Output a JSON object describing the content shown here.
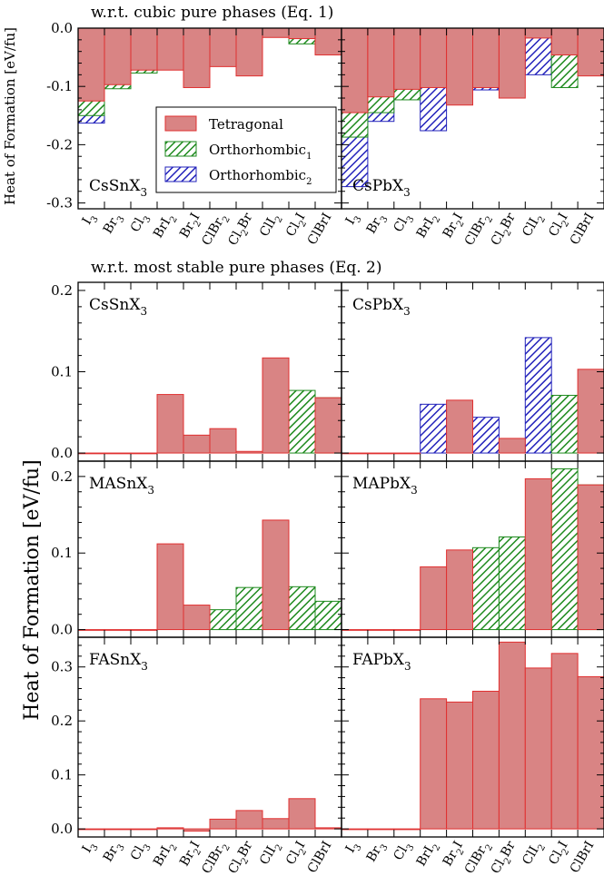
{
  "colors": {
    "tetragonal_fill": "#d98484",
    "tetragonal_stroke": "#e03030",
    "ortho1_stripe": "#1e8a1e",
    "ortho2_stripe": "#2222bb",
    "axis": "#000000"
  },
  "headings": {
    "top": "w.r.t. cubic pure phases (Eq. 1)",
    "bottom": "w.r.t. most stable pure phases (Eq. 2)"
  },
  "ylabels": {
    "top": "Heat of Formation [eV/fu]",
    "bottom": "Heat of Formation [eV/fu]"
  },
  "legend": [
    {
      "key": "tet",
      "label": "Tetragonal",
      "sub": ""
    },
    {
      "key": "o1",
      "label": "Orthorhombic",
      "sub": "1"
    },
    {
      "key": "o2",
      "label": "Orthorhombic",
      "sub": "2"
    }
  ],
  "categories": [
    {
      "text": "I",
      "sub": "3",
      "tail": ""
    },
    {
      "text": "Br",
      "sub": "3",
      "tail": ""
    },
    {
      "text": "Cl",
      "sub": "3",
      "tail": ""
    },
    {
      "text": "BrI",
      "sub": "2",
      "tail": ""
    },
    {
      "text": "Br",
      "sub": "2",
      "tail": "I"
    },
    {
      "text": "ClBr",
      "sub": "2",
      "tail": ""
    },
    {
      "text": "Cl",
      "sub": "2",
      "tail": "Br"
    },
    {
      "text": "ClI",
      "sub": "2",
      "tail": ""
    },
    {
      "text": "Cl",
      "sub": "2",
      "tail": "I"
    },
    {
      "text": "ClBrI",
      "sub": "",
      "tail": ""
    }
  ],
  "chart_data": [
    {
      "type": "bar",
      "panel": "CsSnX3 (Eq. 1)",
      "label": "CsSnX",
      "label_sub": "3",
      "ylim": [
        -0.31,
        0.0
      ],
      "yticks": [
        0.0,
        -0.1,
        -0.2,
        -0.3
      ],
      "ytick_labels": [
        "0.0",
        "-0.1",
        "-0.2",
        "-0.3"
      ],
      "values": {
        "tet": [
          -0.125,
          -0.097,
          -0.072,
          -0.072,
          -0.102,
          -0.066,
          -0.082,
          -0.016,
          -0.018,
          -0.046
        ],
        "o1": [
          -0.15,
          -0.104,
          -0.077,
          null,
          null,
          null,
          null,
          null,
          -0.027,
          null
        ],
        "o2": [
          -0.163,
          null,
          null,
          null,
          null,
          null,
          null,
          null,
          null,
          null
        ]
      }
    },
    {
      "type": "bar",
      "panel": "CsPbX3 (Eq. 1)",
      "label": "CsPbX",
      "label_sub": "3",
      "ylim": [
        -0.31,
        0.0
      ],
      "yticks": [
        0.0,
        -0.1,
        -0.2,
        -0.3
      ],
      "ytick_labels": [
        "",
        "",
        "",
        ""
      ],
      "values": {
        "tet": [
          -0.145,
          -0.118,
          -0.105,
          -0.102,
          -0.132,
          -0.102,
          -0.12,
          -0.017,
          -0.046,
          -0.082
        ],
        "o1": [
          -0.187,
          -0.145,
          -0.123,
          null,
          null,
          null,
          null,
          null,
          -0.102,
          null
        ],
        "o2": [
          -0.272,
          -0.16,
          null,
          -0.176,
          null,
          -0.106,
          null,
          -0.08,
          null,
          null
        ]
      }
    },
    {
      "type": "bar",
      "panel": "CsSnX3 (Eq. 2)",
      "label": "CsSnX",
      "label_sub": "3",
      "ylim": [
        -0.01,
        0.21
      ],
      "yticks": [
        0.0,
        0.1,
        0.2
      ],
      "ytick_labels": [
        "0.0",
        "0.1",
        "0.2"
      ],
      "values": {
        "tet": [
          0.0,
          0.0,
          0.0,
          0.072,
          0.022,
          0.03,
          0.002,
          0.117,
          null,
          0.068
        ],
        "o1": [
          null,
          null,
          null,
          null,
          null,
          null,
          null,
          null,
          0.077,
          0.068
        ],
        "o2": [
          null,
          null,
          null,
          null,
          null,
          null,
          null,
          null,
          null,
          null
        ]
      }
    },
    {
      "type": "bar",
      "panel": "CsPbX3 (Eq. 2)",
      "label": "CsPbX",
      "label_sub": "3",
      "ylim": [
        -0.01,
        0.21
      ],
      "yticks": [
        0.0,
        0.1,
        0.2
      ],
      "ytick_labels": [
        "",
        "",
        ""
      ],
      "values": {
        "tet": [
          0.0,
          0.0,
          0.0,
          null,
          0.065,
          null,
          0.018,
          null,
          null,
          0.103
        ],
        "o1": [
          null,
          null,
          null,
          null,
          null,
          null,
          null,
          null,
          0.071,
          null
        ],
        "o2": [
          null,
          null,
          null,
          0.06,
          null,
          0.044,
          null,
          0.142,
          null,
          null
        ]
      }
    },
    {
      "type": "bar",
      "panel": "MASnX3 (Eq. 2)",
      "label": "MASnX",
      "label_sub": "3",
      "ylim": [
        -0.01,
        0.22
      ],
      "yticks": [
        0.0,
        0.1,
        0.2
      ],
      "ytick_labels": [
        "0.0",
        "0.1",
        "0.2"
      ],
      "values": {
        "tet": [
          0.0,
          0.0,
          0.0,
          0.112,
          0.032,
          null,
          null,
          0.143,
          null,
          null
        ],
        "o1": [
          null,
          null,
          null,
          null,
          null,
          0.026,
          0.055,
          null,
          0.056,
          0.037
        ],
        "o2": [
          null,
          null,
          null,
          null,
          null,
          null,
          null,
          null,
          null,
          null
        ]
      }
    },
    {
      "type": "bar",
      "panel": "MAPbX3 (Eq. 2)",
      "label": "MAPbX",
      "label_sub": "3",
      "ylim": [
        -0.01,
        0.22
      ],
      "yticks": [
        0.0,
        0.1,
        0.2
      ],
      "ytick_labels": [
        "",
        "",
        ""
      ],
      "values": {
        "tet": [
          0.0,
          0.0,
          0.0,
          0.082,
          0.104,
          null,
          null,
          0.197,
          null,
          0.189
        ],
        "o1": [
          null,
          null,
          null,
          null,
          null,
          0.107,
          0.121,
          null,
          0.21,
          0.189
        ],
        "o2": [
          null,
          null,
          null,
          null,
          null,
          null,
          null,
          null,
          null,
          null
        ]
      }
    },
    {
      "type": "bar",
      "panel": "FASnX3 (Eq. 2)",
      "label": "FASnX",
      "label_sub": "3",
      "ylim": [
        -0.015,
        0.355
      ],
      "yticks": [
        0.0,
        0.1,
        0.2,
        0.3
      ],
      "ytick_labels": [
        "0.0",
        "0.1",
        "0.2",
        "0.3"
      ],
      "values": {
        "tet": [
          0.0,
          0.0,
          0.0,
          0.002,
          -0.004,
          0.018,
          0.034,
          0.019,
          0.056,
          0.002
        ],
        "o1": [
          null,
          null,
          null,
          null,
          null,
          null,
          null,
          null,
          null,
          null
        ],
        "o2": [
          null,
          null,
          null,
          null,
          null,
          null,
          null,
          null,
          null,
          null
        ]
      }
    },
    {
      "type": "bar",
      "panel": "FAPbX3 (Eq. 2)",
      "label": "FAPbX",
      "label_sub": "3",
      "ylim": [
        -0.015,
        0.355
      ],
      "yticks": [
        0.0,
        0.1,
        0.2,
        0.3
      ],
      "ytick_labels": [
        "",
        "",
        "",
        ""
      ],
      "values": {
        "tet": [
          0.0,
          0.0,
          0.0,
          0.241,
          0.235,
          0.255,
          0.346,
          0.298,
          0.325,
          0.282
        ],
        "o1": [
          null,
          null,
          null,
          null,
          null,
          null,
          null,
          null,
          null,
          null
        ],
        "o2": [
          null,
          null,
          null,
          null,
          null,
          null,
          null,
          null,
          null,
          null
        ]
      }
    }
  ]
}
